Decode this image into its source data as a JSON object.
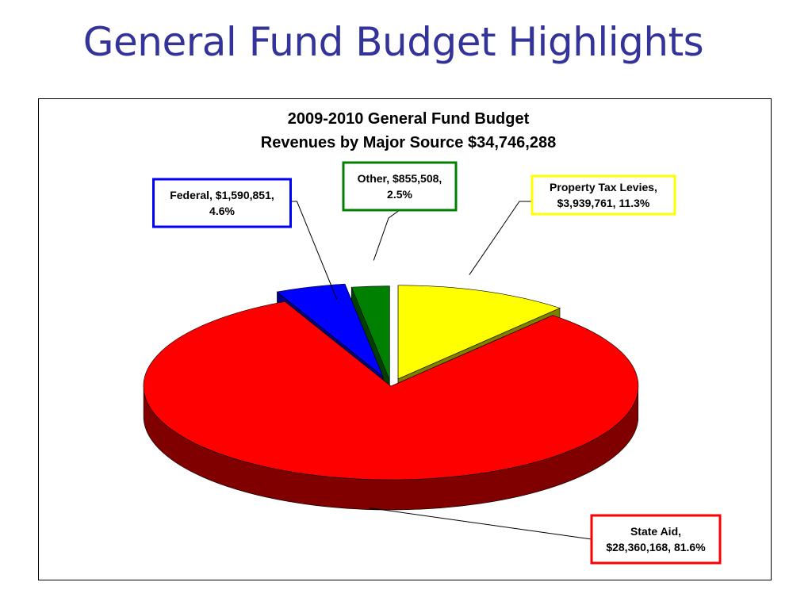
{
  "slide": {
    "title": "General Fund Budget Highlights"
  },
  "chart_data": {
    "type": "pie",
    "title_lines": [
      "2009-2010 General Fund Budget",
      "Revenues by Major Source $34,746,288"
    ],
    "total": 34746288,
    "three_d": true,
    "exploded": true,
    "slices": [
      {
        "name": "Property Tax Levies",
        "value": 3939761,
        "percent": 11.3,
        "label_lines": [
          "Property Tax Levies,",
          "$3,939,761, 11.3%"
        ],
        "color": "#ffff00",
        "side_color": "#808000",
        "label_border": "#ffff00"
      },
      {
        "name": "State Aid",
        "value": 28360168,
        "percent": 81.6,
        "label_lines": [
          "State Aid,",
          "$28,360,168, 81.6%"
        ],
        "color": "#ff0000",
        "side_color": "#800000",
        "label_border": "#ff0000"
      },
      {
        "name": "Federal",
        "value": 1590851,
        "percent": 4.6,
        "label_lines": [
          "Federal, $1,590,851,",
          "4.6%"
        ],
        "color": "#0000ff",
        "side_color": "#000080",
        "label_border": "#0000ff"
      },
      {
        "name": "Other",
        "value": 855508,
        "percent": 2.5,
        "label_lines": [
          "Other, $855,508,",
          "2.5%"
        ],
        "color": "#008000",
        "side_color": "#004000",
        "label_border": "#008000"
      }
    ]
  }
}
